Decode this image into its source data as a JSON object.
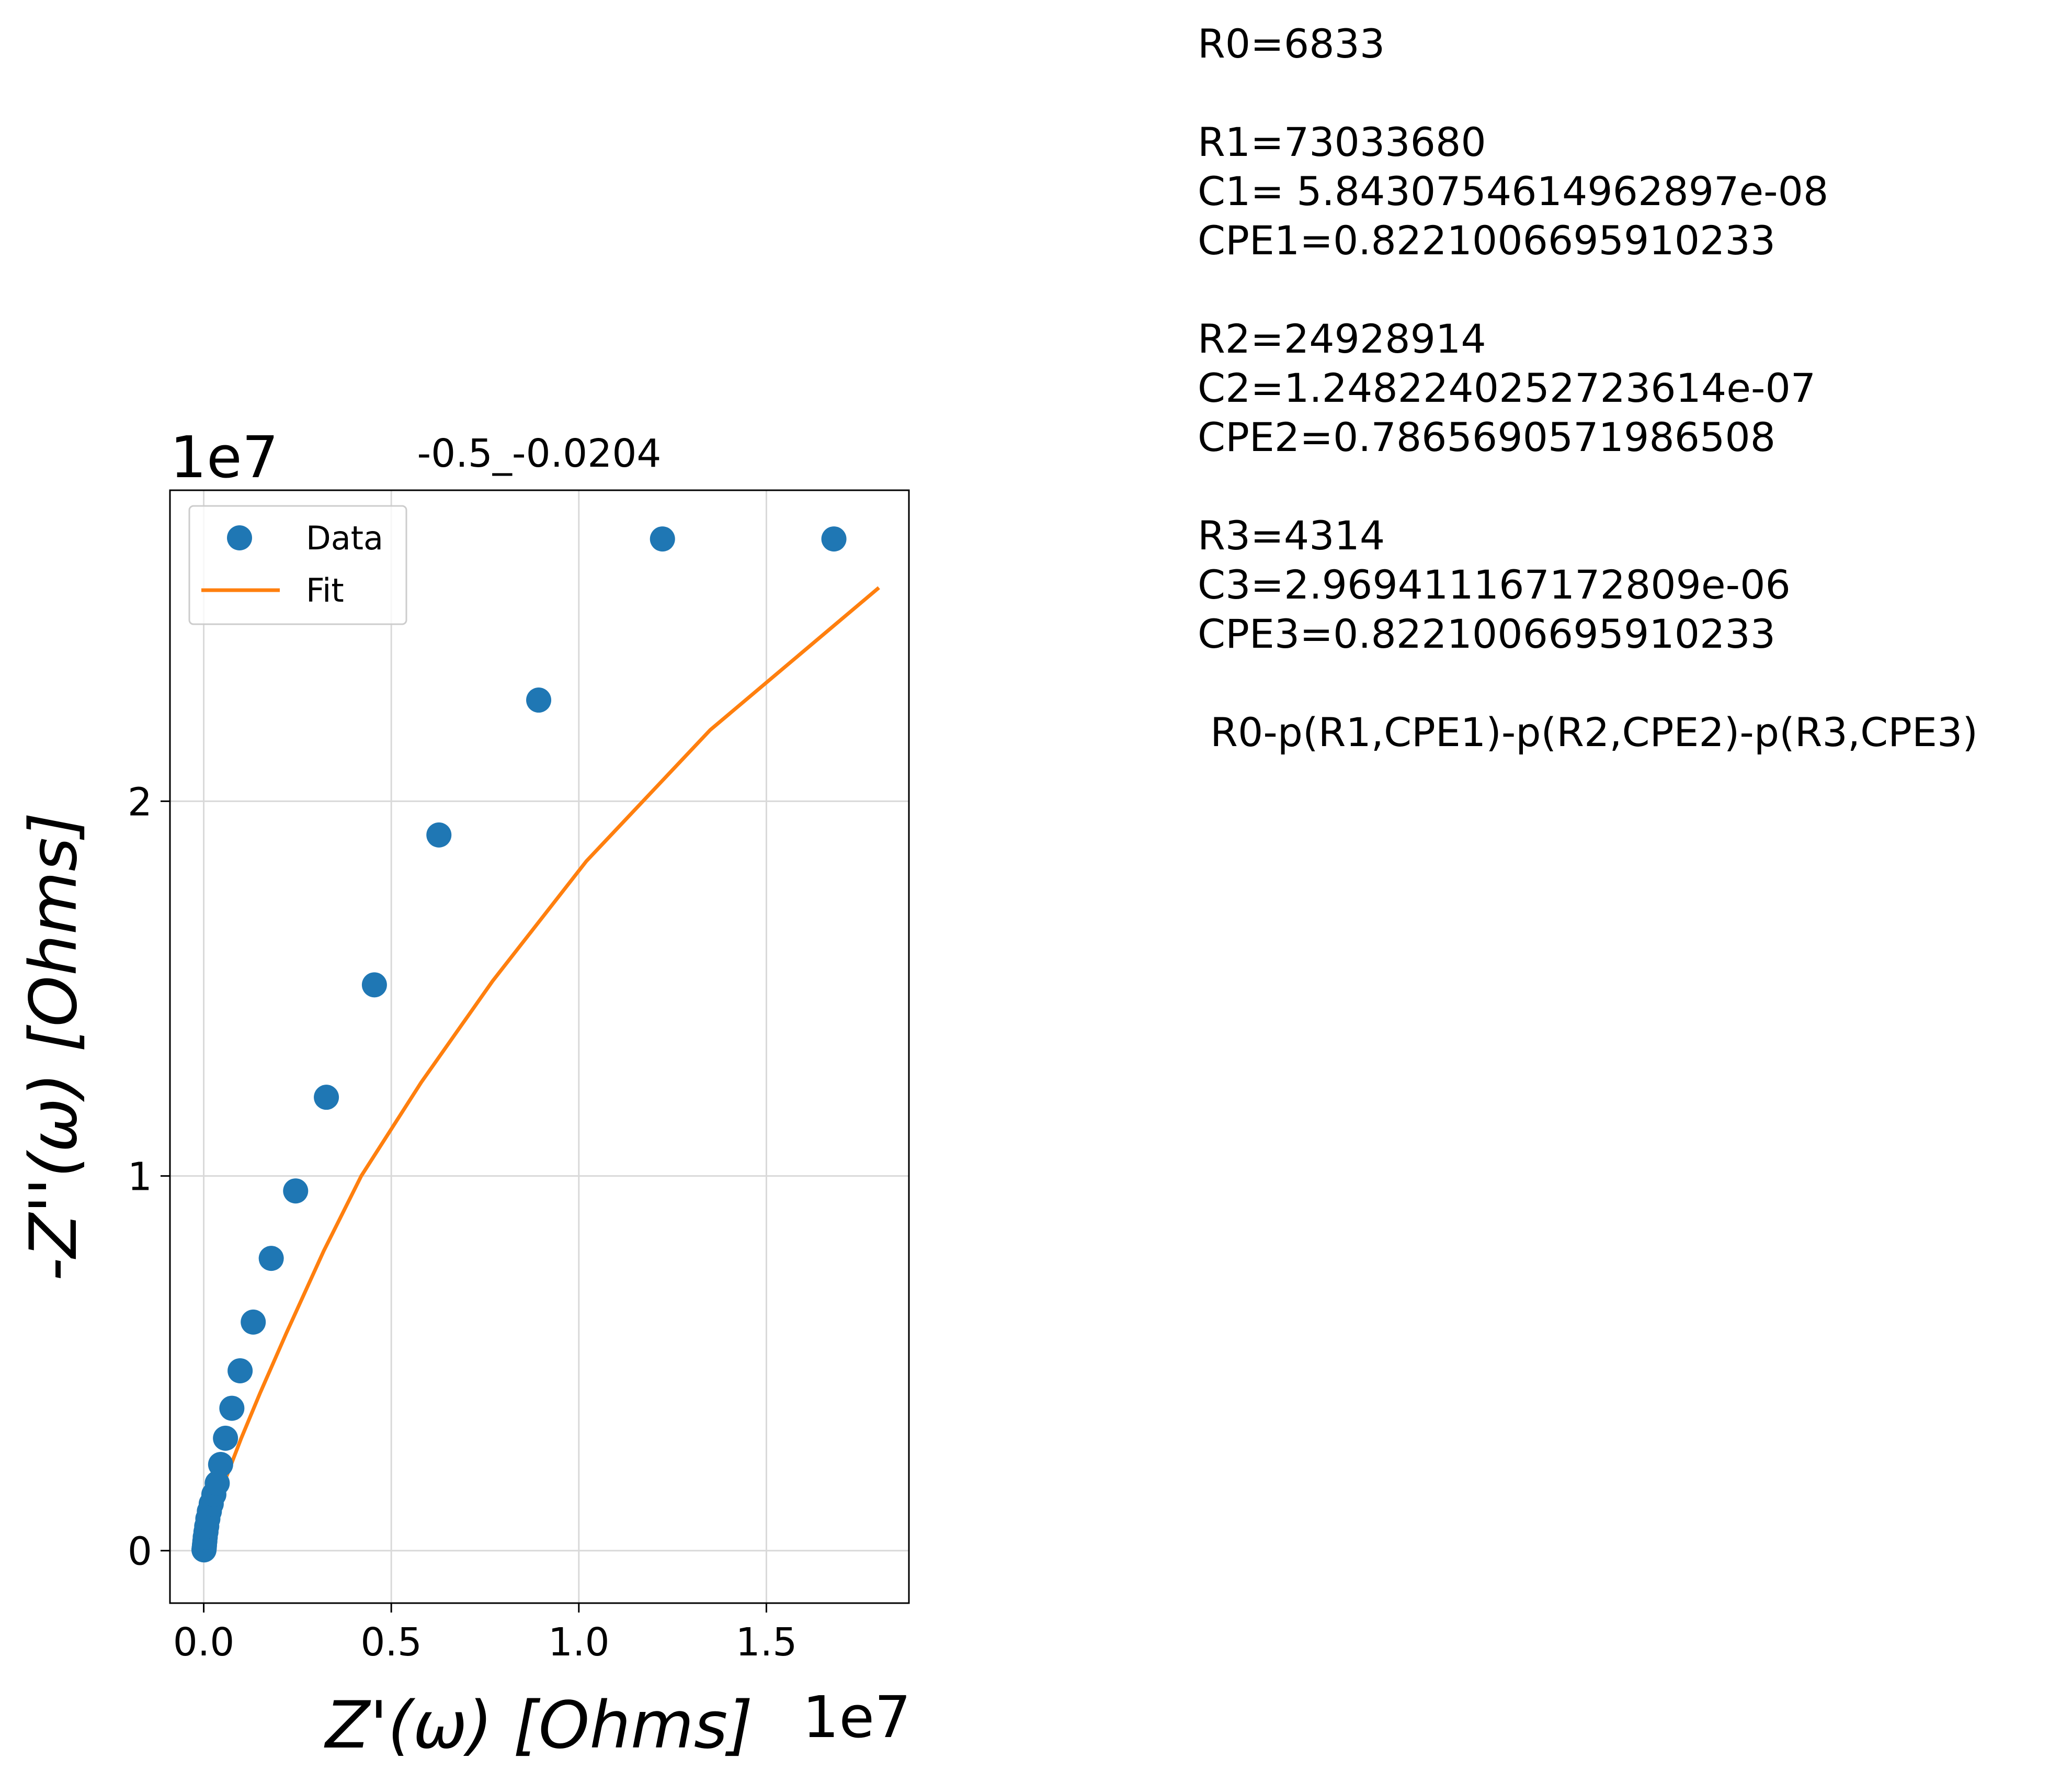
{
  "chart_data": {
    "type": "scatter",
    "title": "-0.5_-0.0204",
    "xlabel": "Z'(ω) [Ohms]",
    "ylabel": "-Z''(ω) [Ohms]",
    "x_offset": "1e7",
    "y_offset": "1e7",
    "xlim": [
      -0.09,
      1.88
    ],
    "ylim": [
      -0.14,
      2.83
    ],
    "xticks": [
      0.0,
      0.5,
      1.0,
      1.5
    ],
    "xtick_labels": [
      "0.0",
      "0.5",
      "1.0",
      "1.5"
    ],
    "yticks": [
      0,
      1,
      2
    ],
    "ytick_labels": [
      "0",
      "1",
      "2"
    ],
    "grid": true,
    "legend": "upper-left",
    "series": [
      {
        "name": "Data",
        "kind": "markers",
        "color": "#1f77b4",
        "x": [
          0.0007,
          0.001,
          0.0015,
          0.002,
          0.003,
          0.004,
          0.006,
          0.008,
          0.011,
          0.015,
          0.02,
          0.027,
          0.036,
          0.045,
          0.058,
          0.075,
          0.097,
          0.132,
          0.18,
          0.245,
          0.327,
          0.455,
          0.627,
          0.893,
          1.223,
          1.68
        ],
        "y": [
          0.002,
          0.005,
          0.009,
          0.015,
          0.025,
          0.036,
          0.05,
          0.065,
          0.085,
          0.105,
          0.125,
          0.15,
          0.18,
          0.23,
          0.3,
          0.38,
          0.48,
          0.61,
          0.78,
          0.96,
          1.21,
          1.51,
          1.91,
          2.27,
          2.7,
          2.7
        ]
      },
      {
        "name": "Fit",
        "kind": "line",
        "color": "#ff7f0e",
        "x": [
          0.0025,
          0.02,
          0.05,
          0.1,
          0.15,
          0.22,
          0.32,
          0.42,
          0.58,
          0.77,
          1.02,
          1.35,
          1.8
        ],
        "y": [
          0.0,
          0.07,
          0.17,
          0.3,
          0.42,
          0.58,
          0.8,
          1.0,
          1.25,
          1.52,
          1.84,
          2.19,
          2.57
        ]
      }
    ]
  },
  "params": {
    "r0": "R0=6833",
    "r1": "R1=73033680",
    "c1": "C1= 5.8430754614962897e-08",
    "cpe1": "CPE1=0.8221006695910233",
    "r2": "R2=24928914",
    "c2": "C2=1.2482240252723614e-07",
    "cpe2": "CPE2=0.7865690571986508",
    "r3": "R3=4314",
    "c3": "C3=2.969411167172809e-06",
    "cpe3": "CPE3=0.8221006695910233",
    "circuit": " R0-p(R1,CPE1)-p(R2,CPE2)-p(R3,CPE3)"
  }
}
